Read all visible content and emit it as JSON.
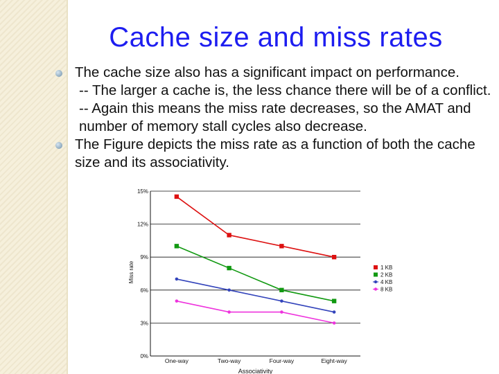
{
  "slide": {
    "title": "Cache size and miss rates",
    "bullets": [
      {
        "text": "The cache size also has a significant impact on performance.",
        "subs": [
          "-- The larger a cache is, the less chance there will be of a conflict.",
          "-- Again this means the miss rate decreases, so the AMAT and number of memory stall cycles also decrease."
        ]
      },
      {
        "text": "The Figure depicts the miss rate as a function of both the cache size and its associativity.",
        "subs": []
      }
    ]
  },
  "chart_data": {
    "type": "line",
    "categories": [
      "One-way",
      "Two-way",
      "Four-way",
      "Eight-way"
    ],
    "series": [
      {
        "name": "1 KB",
        "color": "#dd1111",
        "marker": "square",
        "values": [
          14.5,
          11.0,
          10.0,
          9.0
        ]
      },
      {
        "name": "2 KB",
        "color": "#119911",
        "marker": "square",
        "values": [
          10.0,
          8.0,
          6.0,
          5.0
        ]
      },
      {
        "name": "4 KB",
        "color": "#3344bb",
        "marker": "circle",
        "values": [
          7.0,
          6.0,
          5.0,
          4.0
        ]
      },
      {
        "name": "8 KB",
        "color": "#ee33dd",
        "marker": "circle",
        "values": [
          5.0,
          4.0,
          4.0,
          3.0
        ]
      }
    ],
    "yticks": [
      "0%",
      "3%",
      "6%",
      "9%",
      "12%",
      "15%"
    ],
    "ytick_values": [
      0,
      3,
      6,
      9,
      12,
      15
    ],
    "ylim": [
      0,
      15
    ],
    "xlabel": "Associativity",
    "ylabel": "Miss rate",
    "grid": "horizontal",
    "legend_position": "right"
  }
}
